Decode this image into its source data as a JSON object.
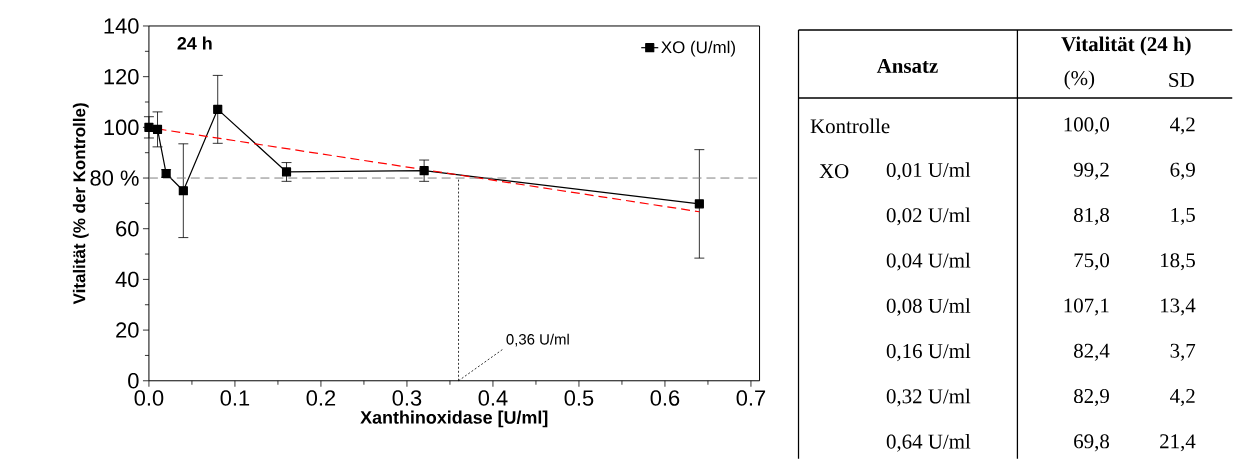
{
  "chart_data": {
    "type": "line",
    "xlabel": "Xanthinoxidase [U/ml]",
    "ylabel": "Vitalität (% der Kontrolle)",
    "xlim": [
      0,
      0.71
    ],
    "ylim": [
      0,
      140
    ],
    "xticks": [
      {
        "value": 0,
        "label": "0.0"
      },
      0.1,
      0.2,
      0.3,
      0.4,
      0.5,
      0.6,
      0.7
    ],
    "yticks": [
      0,
      20,
      40,
      60,
      {
        "value": 80,
        "label": "80 %"
      },
      100,
      120,
      140
    ],
    "legend": "top right",
    "marker": "square",
    "line_style": "solid",
    "grid": false,
    "series": [
      {
        "name": "XO (U/ml)",
        "color": "#000000",
        "x": [
          0,
          0.01,
          0.02,
          0.04,
          0.08,
          0.16,
          0.32,
          0.64
        ],
        "values": [
          100.0,
          99.2,
          81.8,
          75.0,
          107.1,
          82.4,
          82.9,
          69.8
        ],
        "errors": [
          4.2,
          6.9,
          1.5,
          18.5,
          13.4,
          3.7,
          4.2,
          21.4
        ]
      },
      {
        "type": "line",
        "color": "#ff0000",
        "line_style": "dashed",
        "marker": "none",
        "x": [
          0.01,
          0.64
        ],
        "values": [
          99.4,
          66.7
        ]
      }
    ],
    "ref_lines": [
      {
        "axis": "y",
        "value": 80,
        "label": null,
        "color": "#808080",
        "line_style": "dashed"
      },
      {
        "axis": "x",
        "value": 0.36,
        "label": "0,36 U/ml",
        "color": "#000000",
        "line_style": "dotted"
      }
    ],
    "annotations": [
      "24 h",
      "Ansatz",
      "Vitalität (24 h)",
      "(%)",
      "SD",
      "Kontrolle",
      "XO",
      "0,01 U/ml",
      "0,02 U/ml",
      "0,04 U/ml",
      "0,08 U/ml",
      "0,16 U/ml",
      "0,32 U/ml",
      "0,64 U/ml",
      "100,0",
      "99,2",
      "81,8",
      "75,0",
      "107,1",
      "82,4",
      "82,9",
      "69,8",
      "4,2",
      "6,9",
      "1,5",
      "18,5",
      "13,4",
      "3,7",
      "4,2",
      "21,4"
    ]
  }
}
